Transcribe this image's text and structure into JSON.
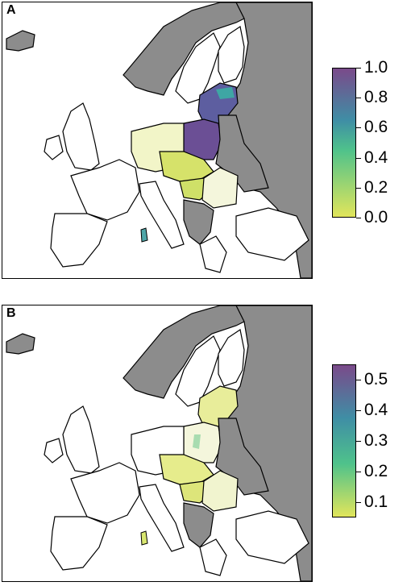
{
  "panels": [
    {
      "label": "A",
      "legend": {
        "min": 0.0,
        "max": 1.0,
        "ticks": [
          "1.0",
          "0.8",
          "0.6",
          "0.4",
          "0.2",
          "0.0"
        ]
      }
    },
    {
      "label": "B",
      "legend": {
        "min": 0.05,
        "max": 0.55,
        "ticks": [
          "0.5",
          "0.4",
          "0.3",
          "0.2",
          "0.1"
        ]
      }
    }
  ],
  "colors": {
    "no_data_country": "#8c8c8c",
    "land": "#ffffff",
    "border": "#000000",
    "scale_low": "#e1e55b",
    "scale_mid": "#4fc28b",
    "scale_high": "#7a4a8a"
  }
}
